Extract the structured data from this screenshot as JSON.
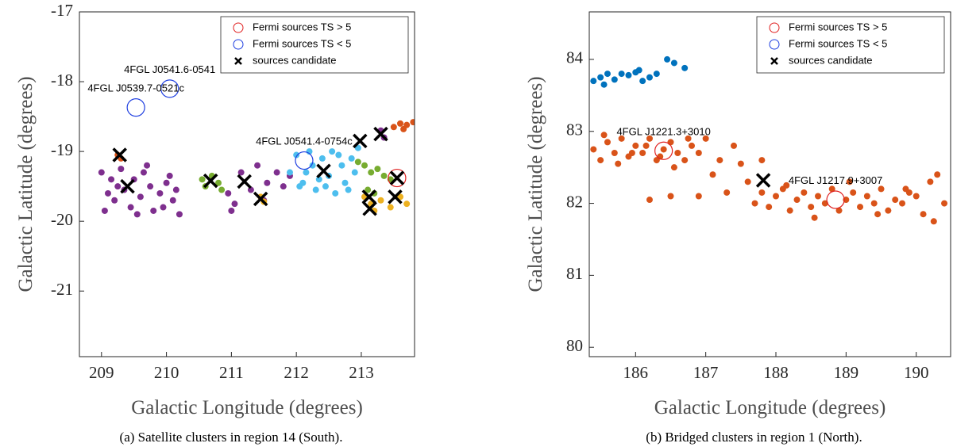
{
  "chart_data": [
    {
      "type": "scatter",
      "xlabel": "Galactic Longitude (degrees)",
      "ylabel": "Galactic Latitude (degrees)",
      "caption": "(a) Satellite clusters in region 14 (South).",
      "xlim": [
        208.66,
        213.82
      ],
      "ylim": [
        -21.94,
        -17
      ],
      "xticks": [
        209,
        210,
        211,
        212,
        213
      ],
      "yticks": [
        -17,
        -18,
        -19,
        -20,
        -21
      ],
      "legend": "upper right",
      "series": [
        {
          "marker": "dot",
          "color": "#7e2f8e",
          "x": [
            209.0,
            209.1,
            209.15,
            209.2,
            209.3,
            209.35,
            209.45,
            209.5,
            209.6,
            209.65,
            209.75,
            209.8,
            209.9,
            210.0,
            210.1,
            210.15,
            210.2,
            209.05,
            209.25,
            209.55,
            209.7,
            209.95,
            210.05,
            210.95,
            211.05,
            211.15,
            211.3,
            211.4,
            211.55,
            211.7,
            211.8,
            211.9,
            211.0,
            211.5,
            213.3,
            213.35
          ],
          "y": [
            -19.3,
            -19.6,
            -19.4,
            -19.7,
            -19.25,
            -19.55,
            -19.8,
            -19.4,
            -19.65,
            -19.3,
            -19.5,
            -19.85,
            -19.6,
            -19.45,
            -19.7,
            -19.55,
            -19.9,
            -19.85,
            -19.5,
            -19.9,
            -19.2,
            -19.8,
            -19.35,
            -19.6,
            -19.75,
            -19.3,
            -19.55,
            -19.2,
            -19.45,
            -19.3,
            -19.5,
            -19.35,
            -19.85,
            -19.7,
            -18.7,
            -18.8
          ]
        },
        {
          "marker": "dot",
          "color": "#4dbeee",
          "x": [
            211.9,
            212.0,
            212.05,
            212.15,
            212.25,
            212.3,
            212.4,
            212.5,
            212.55,
            212.6,
            212.7,
            212.75,
            212.85,
            212.9,
            212.95,
            212.2,
            212.45,
            212.65,
            212.8,
            212.1,
            212.35
          ],
          "y": [
            -19.3,
            -19.05,
            -19.5,
            -19.3,
            -19.2,
            -19.55,
            -19.1,
            -19.35,
            -19.0,
            -19.6,
            -19.2,
            -19.45,
            -19.1,
            -19.3,
            -18.95,
            -19.0,
            -19.5,
            -19.05,
            -19.55,
            -19.45,
            -19.4
          ]
        },
        {
          "marker": "dot",
          "color": "#77ac30",
          "x": [
            210.55,
            210.6,
            210.7,
            210.8,
            210.85,
            212.95,
            213.05,
            213.15,
            213.25,
            213.35,
            213.45,
            213.2,
            213.1
          ],
          "y": [
            -19.4,
            -19.5,
            -19.35,
            -19.45,
            -19.55,
            -19.15,
            -19.2,
            -19.3,
            -19.25,
            -19.35,
            -19.4,
            -19.6,
            -19.55
          ]
        },
        {
          "marker": "dot",
          "color": "#edb120",
          "x": [
            211.45,
            211.5,
            213.05,
            213.15,
            213.3,
            213.45,
            213.6,
            213.7,
            213.2
          ],
          "y": [
            -19.65,
            -19.72,
            -19.65,
            -19.75,
            -19.7,
            -19.8,
            -19.65,
            -19.75,
            -19.85
          ]
        },
        {
          "marker": "dot",
          "color": "#d95319",
          "x": [
            209.25,
            209.3,
            213.5,
            213.6,
            213.7,
            213.8,
            213.65
          ],
          "y": [
            -19.05,
            -19.1,
            -18.65,
            -18.6,
            -18.62,
            -18.58,
            -18.68
          ]
        },
        {
          "name": "Fermi sources TS > 5",
          "marker": "circle",
          "color": "#e02020",
          "x": [
            213.55
          ],
          "y": [
            -19.38
          ]
        },
        {
          "name": "Fermi sources TS < 5",
          "marker": "circle",
          "color": "#1f3fe0",
          "x": [
            209.53,
            210.05,
            212.12
          ],
          "y": [
            -18.37,
            -18.1,
            -19.13
          ],
          "labels": [
            "4FGL J0539.7-0521c",
            "4FGL J0541.6-0541",
            "4FGL J0541.4-0754c"
          ]
        },
        {
          "name": "sources candidate",
          "marker": "cross",
          "color": "#000000",
          "x": [
            209.28,
            209.4,
            210.68,
            211.2,
            211.45,
            212.42,
            212.98,
            213.3,
            213.12,
            213.13,
            213.52,
            213.55
          ],
          "y": [
            -19.05,
            -19.5,
            -19.42,
            -19.43,
            -19.68,
            -19.28,
            -18.85,
            -18.75,
            -19.65,
            -19.82,
            -19.65,
            -19.38
          ]
        }
      ]
    },
    {
      "type": "scatter",
      "xlabel": "Galactic Longitude (degrees)",
      "ylabel": "Galactic Latitude (degrees)",
      "caption": "(b) Bridged clusters in region 1 (North).",
      "xlim": [
        185.34,
        190.49
      ],
      "ylim": [
        79.87,
        84.66
      ],
      "xticks": [
        186,
        187,
        188,
        189,
        190
      ],
      "yticks": [
        80,
        81,
        82,
        83,
        84
      ],
      "legend": "upper right",
      "series": [
        {
          "marker": "dot",
          "color": "#0072bd",
          "x": [
            185.4,
            185.5,
            185.6,
            185.7,
            185.8,
            185.9,
            186.0,
            186.1,
            186.2,
            186.3,
            186.55,
            186.7,
            186.45,
            185.55,
            186.05
          ],
          "y": [
            83.7,
            83.75,
            83.8,
            83.72,
            83.8,
            83.78,
            83.82,
            83.7,
            83.75,
            83.8,
            83.95,
            83.88,
            84.0,
            83.65,
            83.85
          ]
        },
        {
          "marker": "dot",
          "color": "#d95319",
          "x": [
            185.4,
            185.5,
            185.6,
            185.7,
            185.8,
            185.9,
            186.0,
            186.1,
            186.2,
            186.3,
            186.4,
            186.5,
            186.6,
            186.7,
            186.8,
            186.9,
            185.55,
            185.75,
            185.95,
            186.15,
            186.35,
            186.55,
            186.75
          ],
          "y": [
            82.75,
            82.6,
            82.85,
            82.7,
            82.9,
            82.65,
            82.8,
            82.7,
            82.9,
            82.6,
            82.75,
            82.85,
            82.7,
            82.6,
            82.8,
            82.7,
            82.95,
            82.55,
            82.7,
            82.8,
            82.65,
            82.5,
            82.9
          ]
        },
        {
          "marker": "dot",
          "color": "#d95319",
          "x": [
            186.9,
            187.1,
            187.3,
            187.5,
            187.6,
            187.4,
            187.2,
            186.5,
            186.2,
            187.8,
            187.0
          ],
          "y": [
            82.1,
            82.4,
            82.15,
            82.55,
            82.3,
            82.8,
            82.6,
            82.1,
            82.05,
            82.6,
            82.9
          ]
        },
        {
          "marker": "dot",
          "color": "#d95319",
          "x": [
            187.7,
            187.8,
            187.9,
            188.0,
            188.1,
            188.2,
            188.3,
            188.4,
            188.5,
            188.6,
            188.7,
            188.8,
            188.9,
            189.0,
            189.1,
            189.2,
            189.3,
            189.4,
            189.5,
            189.6,
            189.7,
            189.8,
            189.9,
            190.0,
            190.1,
            190.2,
            190.3,
            190.4,
            188.15,
            188.55,
            189.05,
            189.45,
            189.85,
            190.25
          ],
          "y": [
            82.0,
            82.15,
            81.95,
            82.1,
            82.2,
            81.9,
            82.05,
            82.15,
            81.95,
            82.1,
            82.0,
            82.2,
            81.9,
            82.05,
            82.15,
            81.95,
            82.1,
            82.0,
            82.2,
            81.9,
            82.05,
            82.0,
            82.15,
            82.1,
            81.85,
            82.3,
            82.4,
            82.0,
            82.25,
            81.8,
            82.3,
            81.85,
            82.2,
            81.75
          ]
        },
        {
          "name": "Fermi sources TS > 5",
          "marker": "circle",
          "color": "#e02020",
          "x": [
            186.4,
            188.85
          ],
          "y": [
            82.73,
            82.05
          ],
          "labels": [
            "4FGL J1221.3+3010",
            "4FGL J1217.9+3007"
          ]
        },
        {
          "name": "Fermi sources TS < 5",
          "marker": "circle",
          "color": "#1f3fe0",
          "x": [],
          "y": []
        },
        {
          "name": "sources candidate",
          "marker": "cross",
          "color": "#000000",
          "x": [
            187.82
          ],
          "y": [
            82.32
          ]
        }
      ]
    }
  ]
}
